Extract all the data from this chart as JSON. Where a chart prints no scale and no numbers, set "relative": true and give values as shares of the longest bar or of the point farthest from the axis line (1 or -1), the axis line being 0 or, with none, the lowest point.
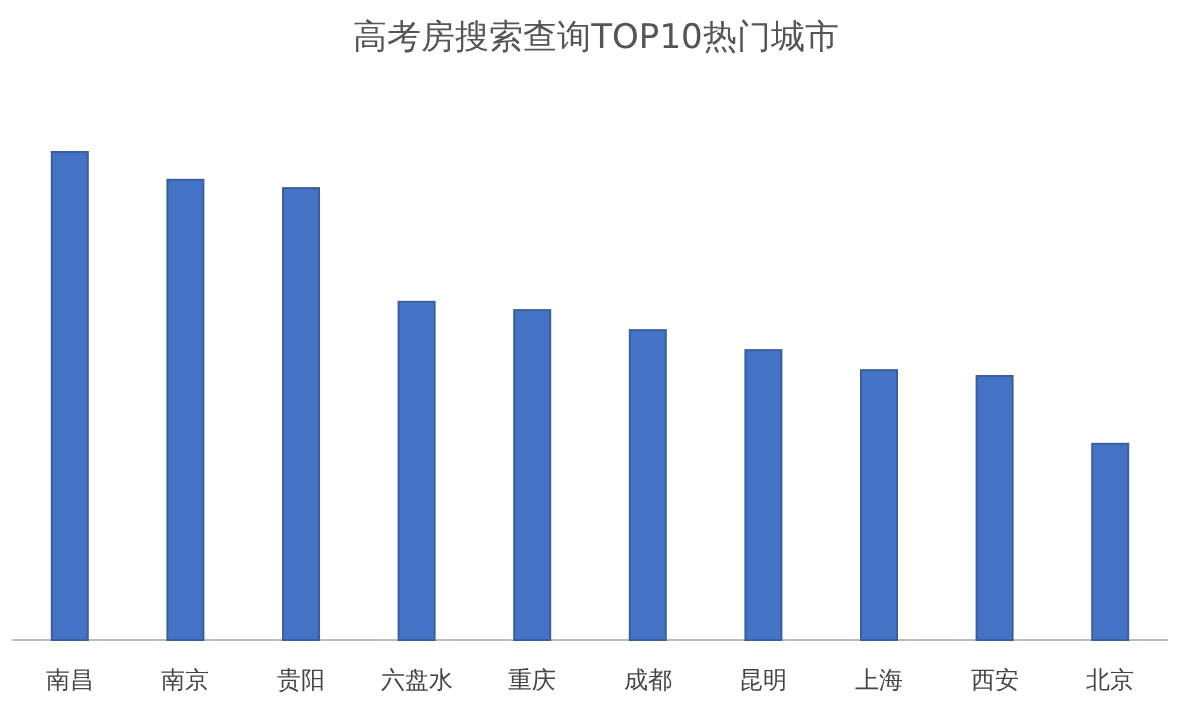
{
  "chart_data": {
    "type": "bar",
    "title": "高考房搜索查询TOP10热门城市",
    "relative": true,
    "categories": [
      "南昌",
      "南京",
      "贵阳",
      "六盘水",
      "重庆",
      "成都",
      "昆明",
      "上海",
      "西安",
      "北京"
    ],
    "values": [
      1,
      0.943,
      0.926,
      0.693,
      0.676,
      0.635,
      0.594,
      0.553,
      0.541,
      0.402
    ],
    "color": "#4472c4"
  }
}
